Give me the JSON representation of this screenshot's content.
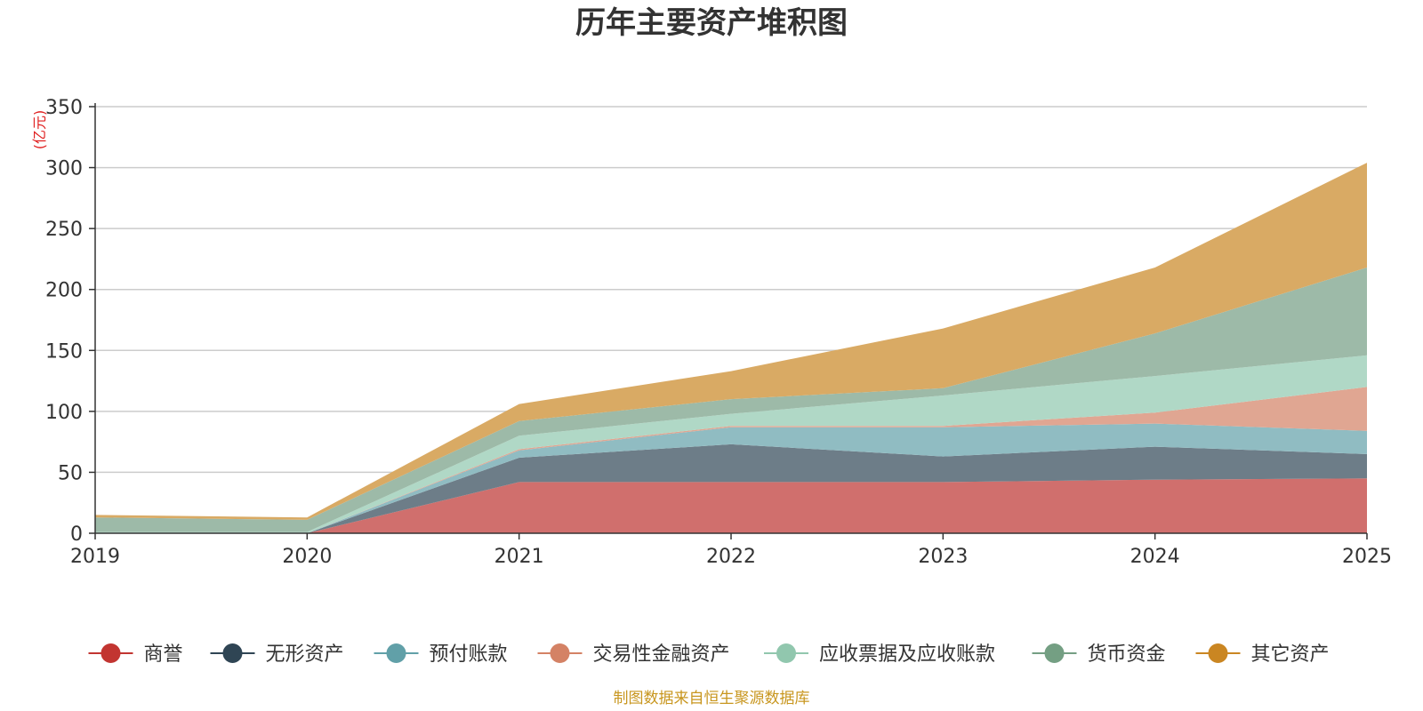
{
  "chart_data": {
    "type": "area",
    "stacked": true,
    "title": "历年主要资产堆积图",
    "unit_label": "(亿元)",
    "source_note": "制图数据来自恒生聚源数据库",
    "categories": [
      "2019",
      "2020",
      "2021",
      "2022",
      "2023",
      "2024",
      "2025"
    ],
    "ylim": [
      0,
      350
    ],
    "yticks": [
      0,
      50,
      100,
      150,
      200,
      250,
      300,
      350
    ],
    "grid": true,
    "legend_position": "bottom",
    "series": [
      {
        "name": "商誉",
        "color": "#c23531",
        "fill": "#d06f6d",
        "values": [
          0,
          0,
          42,
          42,
          42,
          44,
          45
        ]
      },
      {
        "name": "无形资产",
        "color": "#2f4554",
        "fill": "#6d7d88",
        "values": [
          0,
          0,
          20,
          31,
          21,
          27,
          20
        ]
      },
      {
        "name": "预付账款",
        "color": "#61a0a8",
        "fill": "#90bcc2",
        "values": [
          0,
          0,
          6,
          14,
          24,
          19,
          19
        ]
      },
      {
        "name": "交易性金融资产",
        "color": "#d48265",
        "fill": "#e0a692",
        "values": [
          0,
          0,
          1,
          1,
          1,
          9,
          36
        ]
      },
      {
        "name": "应收票据及应收账款",
        "color": "#91c7ae",
        "fill": "#b0d8c6",
        "values": [
          1,
          1,
          11,
          10,
          25,
          30,
          26
        ]
      },
      {
        "name": "货币资金",
        "color": "#749f83",
        "fill": "#9dbaa8",
        "values": [
          12,
          10,
          12,
          12,
          6,
          35,
          72
        ]
      },
      {
        "name": "其它资产",
        "color": "#ca8622",
        "fill": "#d9aa64",
        "values": [
          2,
          2,
          14,
          23,
          49,
          54,
          86
        ]
      }
    ]
  }
}
